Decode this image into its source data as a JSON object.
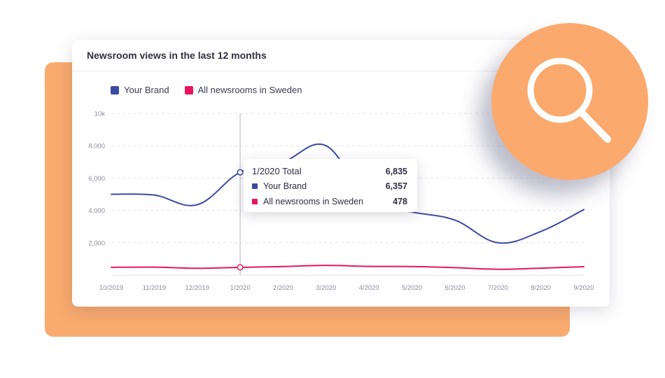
{
  "chart_data": {
    "type": "line",
    "title": "Newsroom views in the last 12 months",
    "categories": [
      "10/2019",
      "11/2019",
      "12/2019",
      "1/2020",
      "2/2020",
      "3/2020",
      "4/2020",
      "5/2020",
      "6/2020",
      "7/2020",
      "8/2020",
      "9/2020"
    ],
    "y_ticks": [
      "10k",
      "8,000",
      "6,000",
      "4,000",
      "2,000"
    ],
    "y_tick_values": [
      10000,
      8000,
      6000,
      4000,
      2000
    ],
    "ylim": [
      0,
      10000
    ],
    "grid": true,
    "legend_position": "top-left",
    "series": [
      {
        "name": "Your Brand",
        "color": "#3b4aa3",
        "values": [
          5000,
          4950,
          4350,
          6357,
          7000,
          8000,
          4500,
          3900,
          3400,
          2000,
          2700,
          4050
        ]
      },
      {
        "name": "All newsrooms in Sweden",
        "color": "#e8175d",
        "values": [
          480,
          490,
          420,
          478,
          530,
          600,
          540,
          530,
          460,
          360,
          430,
          520
        ]
      }
    ],
    "highlight_index": 3
  },
  "tooltip": {
    "title": "1/2020 Total",
    "total": "6,835",
    "rows": [
      {
        "label": "Your Brand",
        "value": "6,357",
        "color": "#3b4aa3"
      },
      {
        "label": "All newsrooms in Sweden",
        "value": "478",
        "color": "#e8175d"
      }
    ]
  },
  "colors": {
    "backdrop": "#f9aa6e",
    "search_circle": "#fba96c"
  },
  "icons": {
    "search": "search-icon"
  }
}
